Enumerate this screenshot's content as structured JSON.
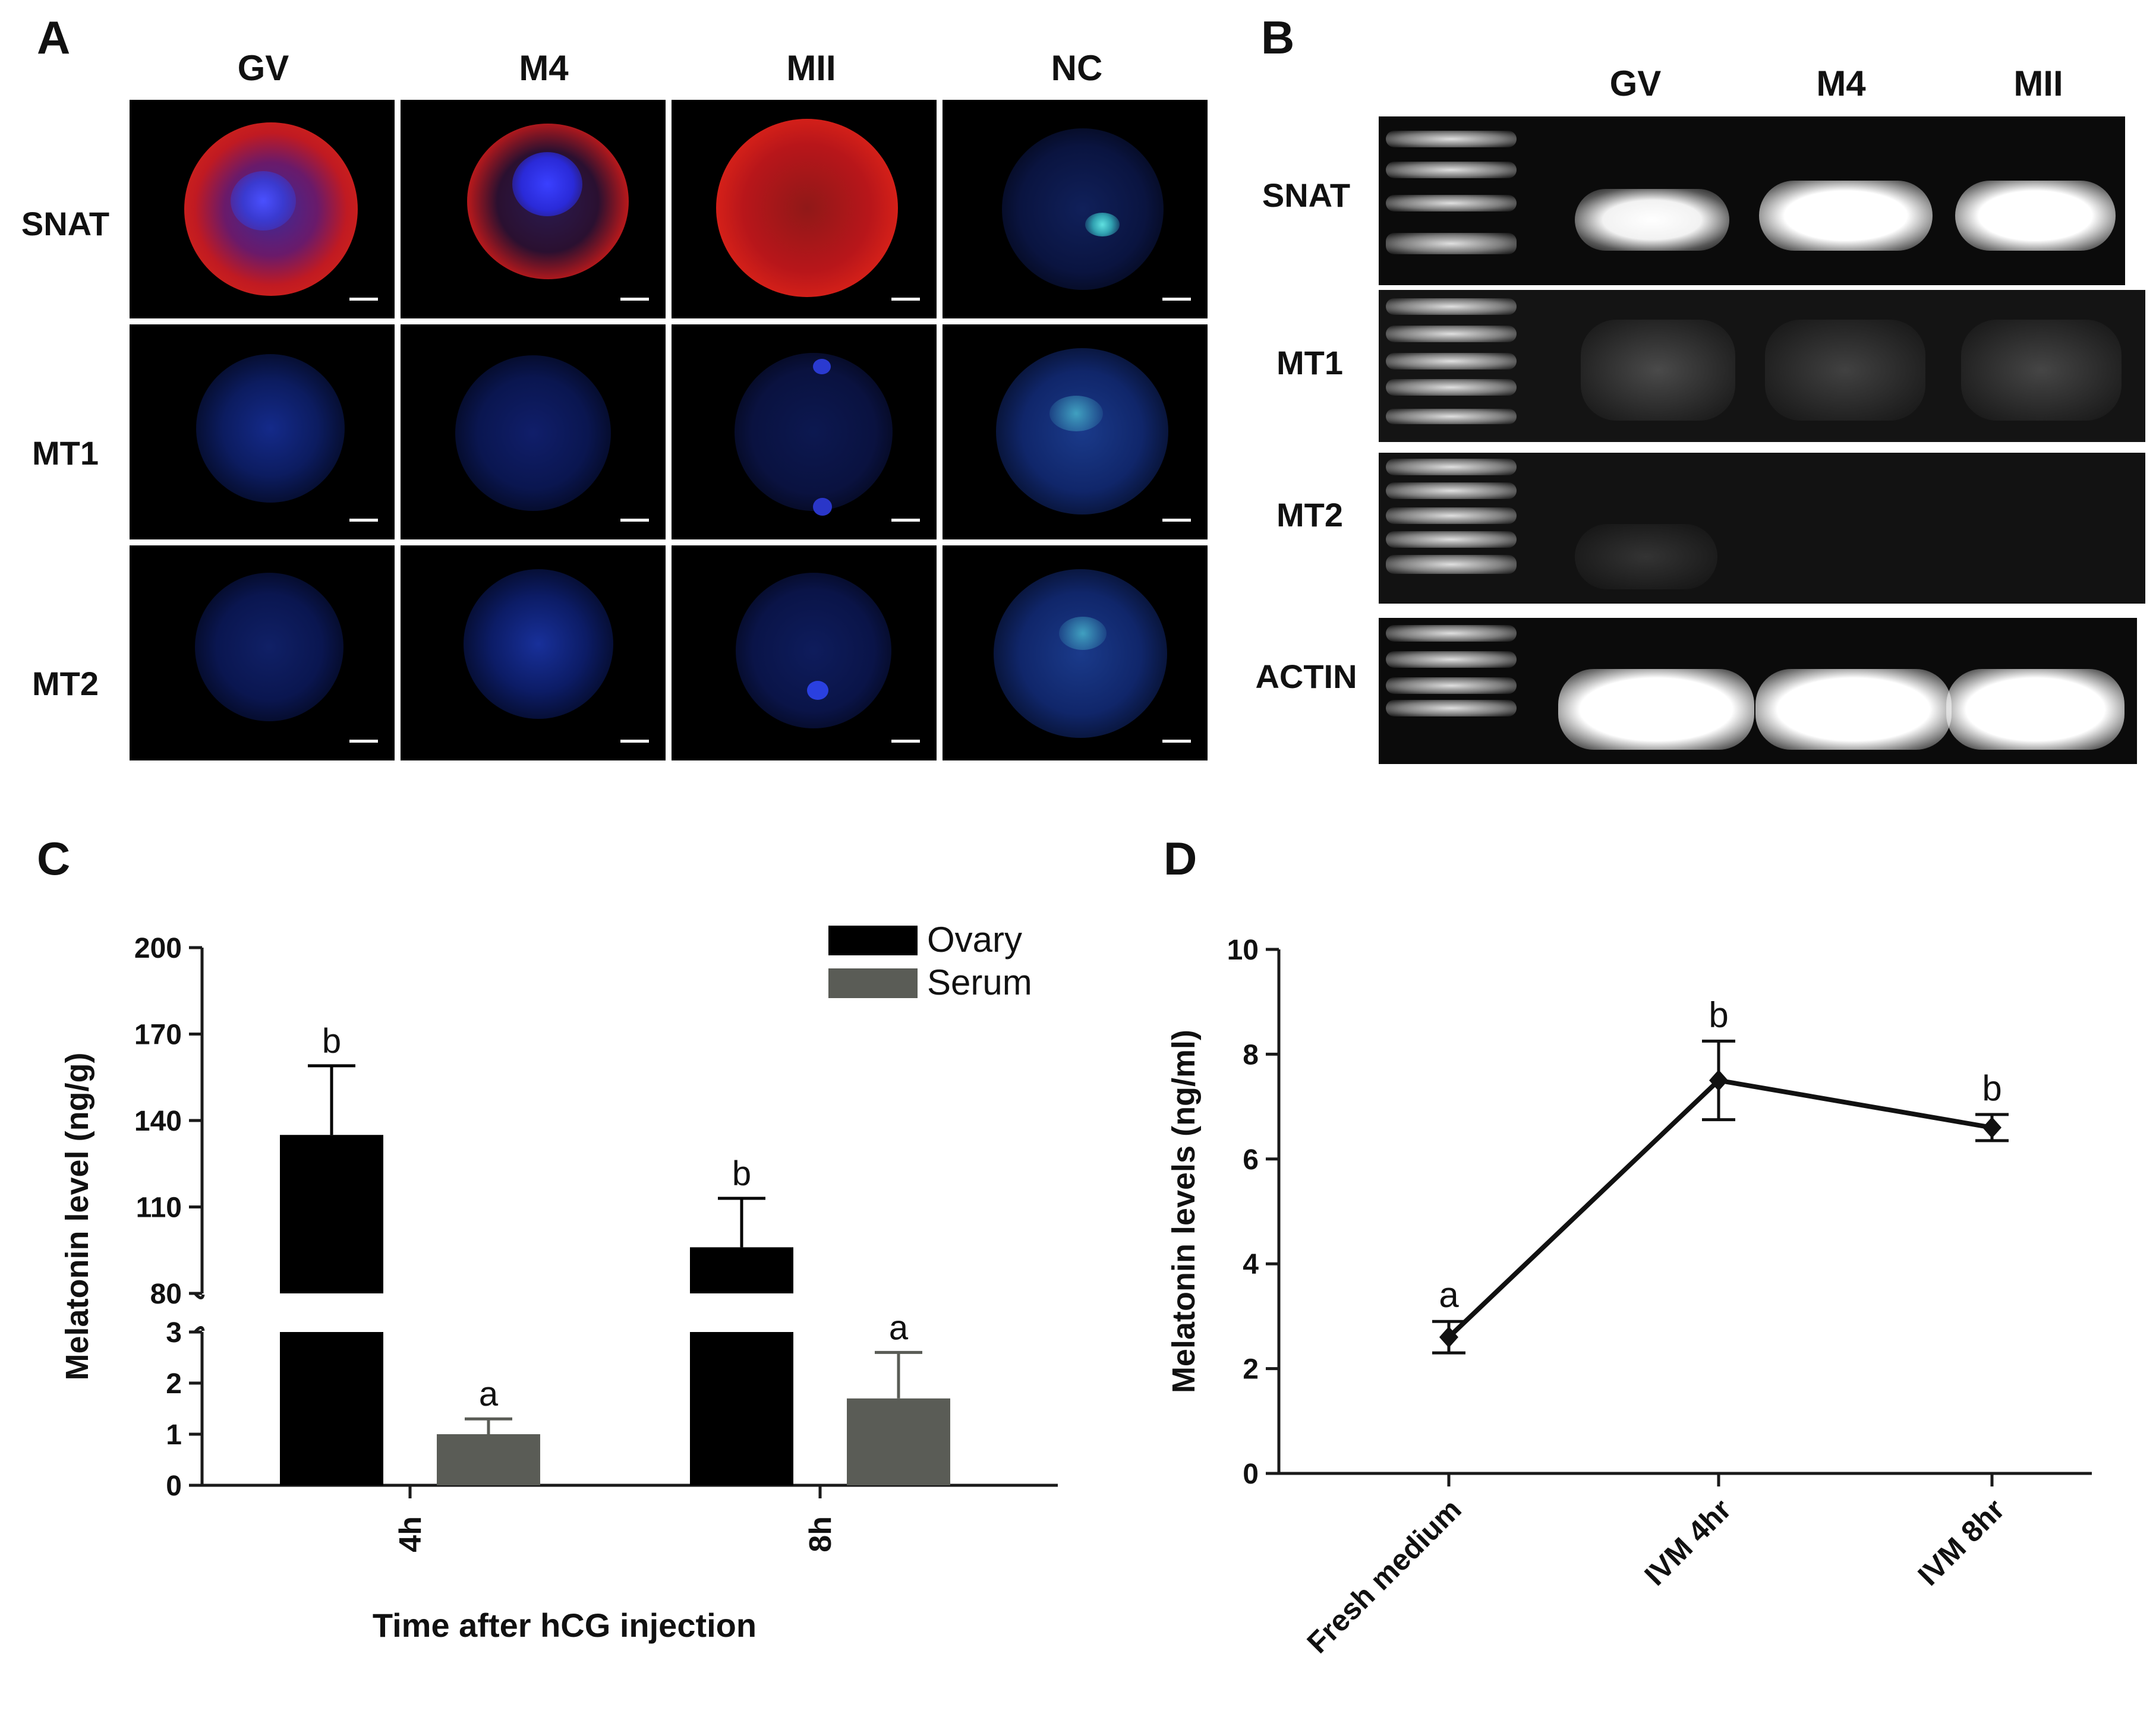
{
  "panels": {
    "a": {
      "letter": "A",
      "columns": [
        "GV",
        "M4",
        "MII",
        "NC"
      ],
      "rows": [
        "SNAT",
        "MT1",
        "MT2"
      ]
    },
    "b": {
      "letter": "B",
      "columns": [
        "GV",
        "M4",
        "MII"
      ],
      "rows": [
        "SNAT",
        "MT1",
        "MT2",
        "ACTIN"
      ]
    },
    "c": {
      "letter": "C"
    },
    "d": {
      "letter": "D"
    }
  },
  "colors": {
    "snat_stain": "#e0201a",
    "dapi": "#2a3bd8",
    "ovary": "#000000",
    "serum": "#5a5c56"
  },
  "chart_data": [
    {
      "panel": "C",
      "type": "bar",
      "categories": [
        "4h",
        "8h"
      ],
      "series": [
        {
          "name": "Ovary",
          "values": [
            135,
            96
          ],
          "errors": [
            24,
            17
          ],
          "letters": [
            "b",
            "b"
          ]
        },
        {
          "name": "Serum",
          "values": [
            1.0,
            1.7
          ],
          "errors": [
            0.3,
            0.9
          ],
          "letters": [
            "a",
            "a"
          ]
        }
      ],
      "xlabel": "Time after hCG injection",
      "ylabel": "Melatonin level (ng/g)",
      "y_axis_break": {
        "lower": [
          0,
          3
        ],
        "upper": [
          80,
          200
        ]
      },
      "lower_ticks": [
        "0",
        "1",
        "2",
        "3"
      ],
      "upper_ticks": [
        "80",
        "110",
        "140",
        "170",
        "200"
      ],
      "legend_position": "top-right"
    },
    {
      "panel": "D",
      "type": "line",
      "categories": [
        "Fresh medium",
        "IVM 4hr",
        "IVM 8hr"
      ],
      "values": [
        2.6,
        7.5,
        6.6
      ],
      "errors": [
        0.3,
        0.75,
        0.25
      ],
      "letters": [
        "a",
        "b",
        "b"
      ],
      "ylabel": "Melatonin levels (ng/ml)",
      "ylim": [
        0,
        10
      ],
      "ticks": [
        "0",
        "2",
        "4",
        "6",
        "8",
        "10"
      ]
    }
  ]
}
